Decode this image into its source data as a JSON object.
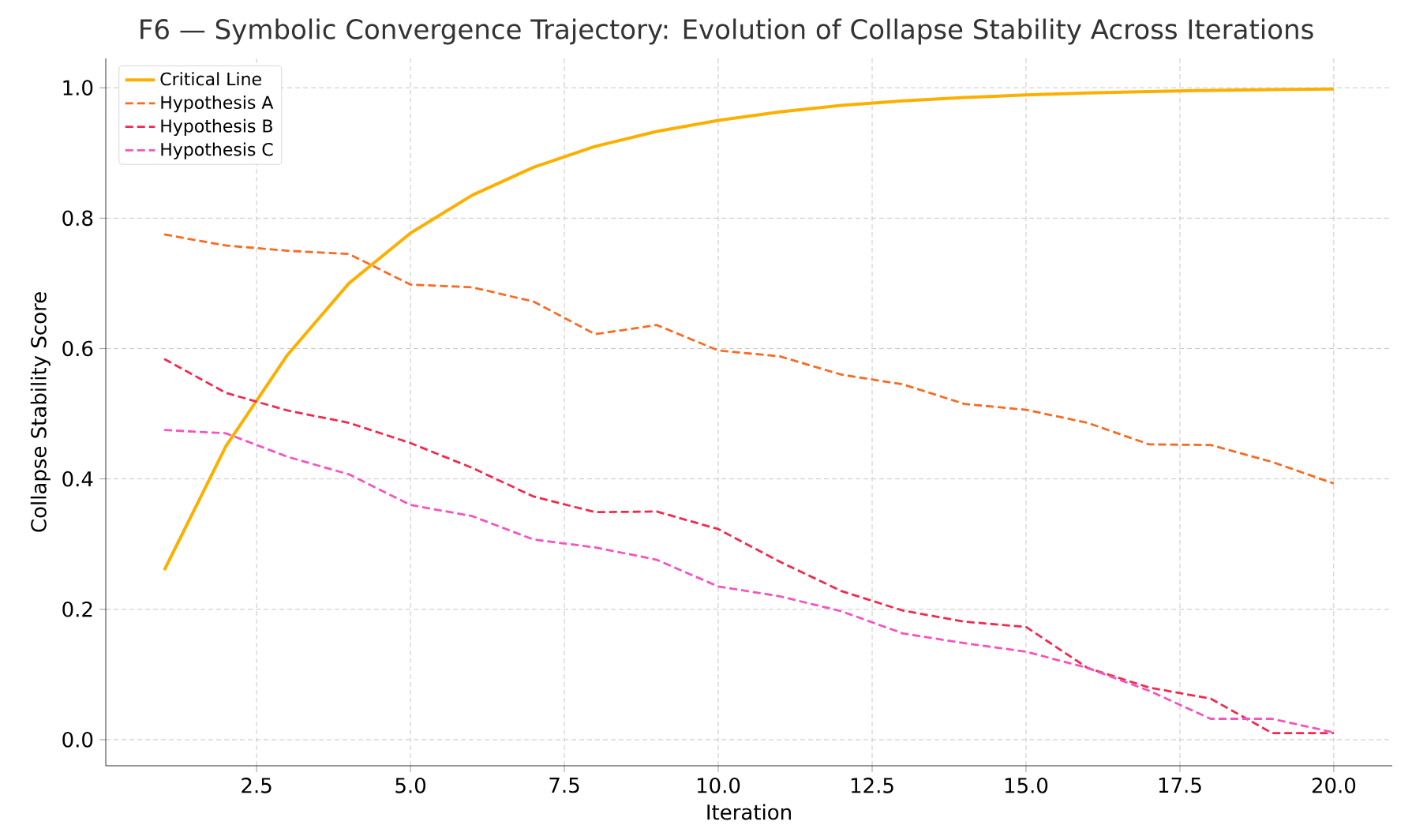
{
  "chart_data": {
    "type": "line",
    "title": "F6 — Symbolic Convergence Trajectory: Evolution of Collapse Stability Across Iterations",
    "xlabel": "Iteration",
    "ylabel": "Collapse Stability Score",
    "x": [
      1,
      2,
      3,
      4,
      5,
      6,
      7,
      8,
      9,
      10,
      11,
      12,
      13,
      14,
      15,
      16,
      17,
      18,
      19,
      20
    ],
    "series": [
      {
        "name": "Critical Line",
        "color": "#fbb000",
        "line_style": "solid",
        "values": [
          0.26,
          0.45,
          0.59,
          0.7,
          0.777,
          0.835,
          0.878,
          0.91,
          0.933,
          0.95,
          0.963,
          0.973,
          0.98,
          0.985,
          0.989,
          0.992,
          0.994,
          0.996,
          0.997,
          0.998
        ]
      },
      {
        "name": "Hypothesis A",
        "color": "#f96a22",
        "line_style": "dashed",
        "values": [
          0.775,
          0.758,
          0.75,
          0.745,
          0.698,
          0.694,
          0.672,
          0.622,
          0.636,
          0.597,
          0.588,
          0.56,
          0.545,
          0.515,
          0.506,
          0.486,
          0.453,
          0.452,
          0.426,
          0.393
        ]
      },
      {
        "name": "Hypothesis B",
        "color": "#f2294e",
        "line_style": "dashed",
        "values": [
          0.584,
          0.532,
          0.505,
          0.486,
          0.455,
          0.417,
          0.373,
          0.349,
          0.35,
          0.323,
          0.273,
          0.228,
          0.198,
          0.181,
          0.173,
          0.11,
          0.08,
          0.063,
          0.01,
          0.01
        ]
      },
      {
        "name": "Hypothesis C",
        "color": "#f553c0",
        "line_style": "dashed",
        "values": [
          0.475,
          0.47,
          0.434,
          0.407,
          0.36,
          0.343,
          0.307,
          0.295,
          0.276,
          0.235,
          0.22,
          0.197,
          0.163,
          0.148,
          0.135,
          0.11,
          0.075,
          0.032,
          0.032,
          0.011
        ]
      }
    ],
    "xlim": [
      0.05,
      20.95
    ],
    "ylim": [
      -0.04,
      1.045
    ],
    "xticks": [
      2.5,
      {
        "value": 5,
        "label": "5.0"
      },
      7.5,
      {
        "value": 10,
        "label": "10.0"
      },
      12.5,
      {
        "value": 15,
        "label": "15.0"
      },
      17.5,
      {
        "value": 20,
        "label": "20.0"
      }
    ],
    "yticks": [
      {
        "value": 0,
        "label": "0.0"
      },
      0.2,
      0.4,
      0.6,
      0.8,
      {
        "value": 1,
        "label": "1.0"
      }
    ],
    "grid": true,
    "legend": "top left"
  }
}
